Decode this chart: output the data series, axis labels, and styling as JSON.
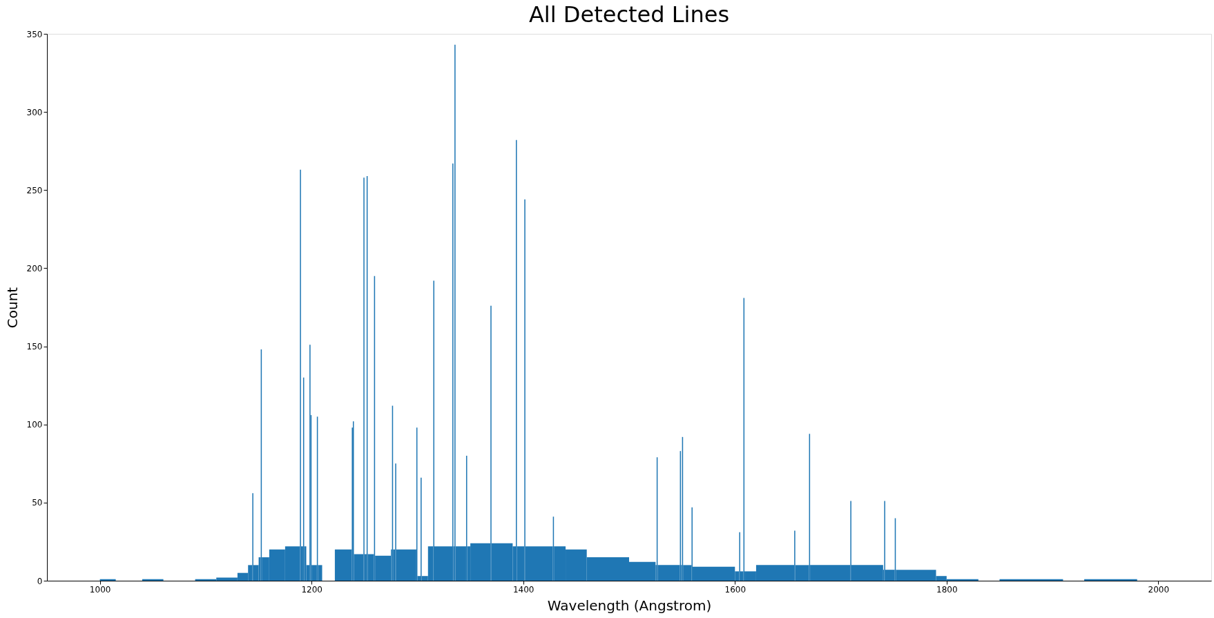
{
  "chart_data": {
    "type": "histogram",
    "title": "All Detected Lines",
    "xlabel": "Wavelength (Angstrom)",
    "ylabel": "Count",
    "color": "#1f77b4",
    "bins": [
      1000,
      1015,
      1040,
      1060,
      1090,
      1110,
      1130,
      1140,
      1144,
      1145,
      1150,
      1152,
      1153,
      1160,
      1175,
      1189,
      1190,
      1192,
      1193,
      1195,
      1198,
      1199,
      1200,
      1205,
      1206,
      1210,
      1222,
      1238,
      1239,
      1240,
      1249,
      1250,
      1252,
      1253,
      1259,
      1260,
      1275,
      1276,
      1277,
      1279,
      1280,
      1299,
      1300,
      1303,
      1304,
      1310,
      1315,
      1316,
      1333,
      1334,
      1335,
      1336,
      1346,
      1347,
      1350,
      1369,
      1370,
      1390,
      1393,
      1394,
      1401,
      1402,
      1428,
      1429,
      1440,
      1460,
      1500,
      1525,
      1526,
      1527,
      1548,
      1549,
      1550,
      1551,
      1559,
      1560,
      1600,
      1604,
      1605,
      1608,
      1609,
      1620,
      1656,
      1657,
      1670,
      1671,
      1709,
      1710,
      1740,
      1741,
      1742,
      1751,
      1752,
      1790,
      1800,
      1830,
      1850,
      1910,
      1930,
      1980
    ],
    "values": [
      1,
      0,
      1,
      0,
      1,
      2,
      5,
      10,
      56,
      10,
      15,
      148,
      15,
      20,
      22,
      263,
      22,
      130,
      22,
      10,
      151,
      106,
      10,
      105,
      10,
      0,
      20,
      98,
      102,
      17,
      258,
      17,
      259,
      17,
      195,
      16,
      20,
      112,
      20,
      75,
      20,
      98,
      3,
      66,
      3,
      22,
      192,
      22,
      267,
      22,
      343,
      22,
      80,
      22,
      24,
      176,
      24,
      22,
      282,
      22,
      244,
      22,
      41,
      22,
      20,
      15,
      12,
      10,
      79,
      10,
      83,
      10,
      92,
      10,
      47,
      9,
      6,
      31,
      6,
      181,
      6,
      10,
      32,
      10,
      94,
      10,
      51,
      10,
      7,
      51,
      7,
      40,
      7,
      3,
      1,
      0,
      1,
      0,
      1
    ],
    "xlim": [
      950,
      2050
    ],
    "xticks": [
      1000,
      1200,
      1400,
      1600,
      1800,
      2000
    ],
    "ylim": [
      0,
      350
    ],
    "yticks": [
      0,
      50,
      100,
      150,
      200,
      250,
      300,
      350
    ],
    "grid": false
  }
}
